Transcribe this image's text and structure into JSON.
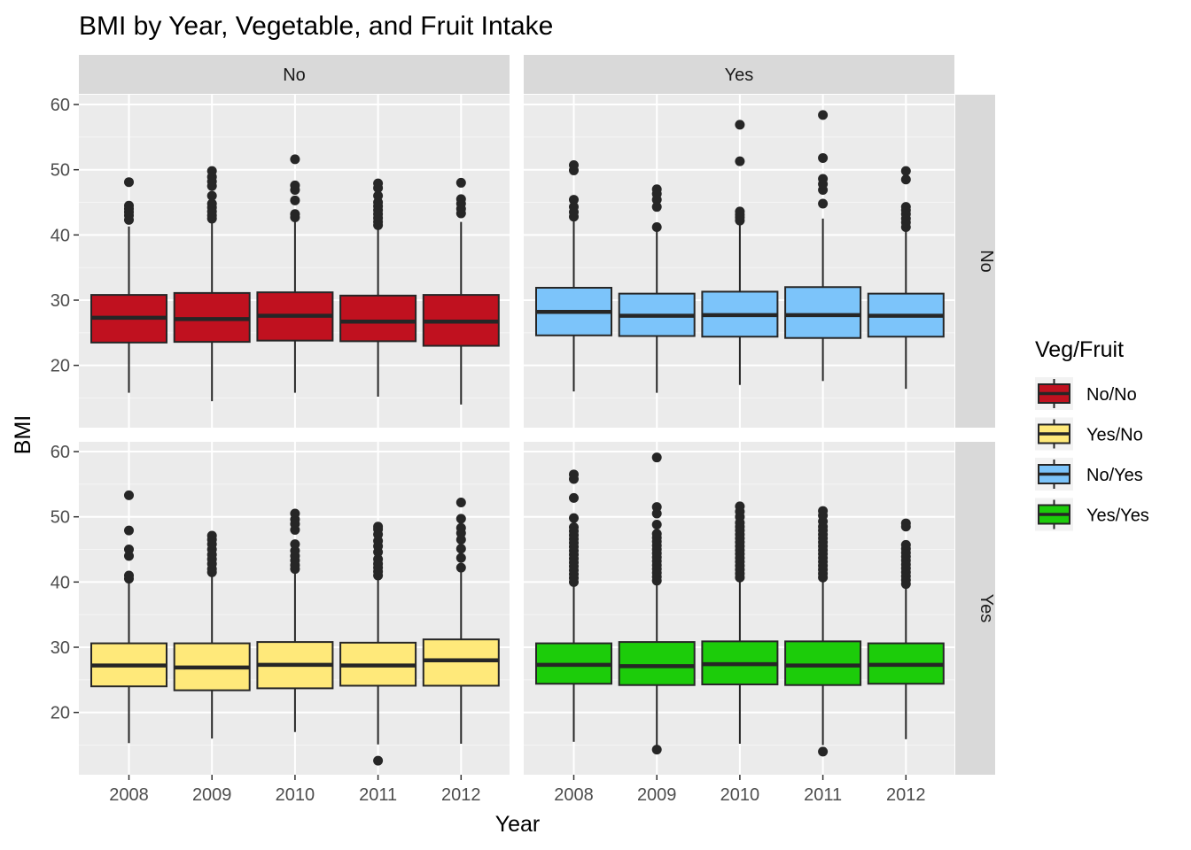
{
  "chart_data": {
    "type": "boxplot",
    "title": "BMI by Year, Vegetable, and Fruit Intake",
    "xlabel": "Year",
    "ylabel": "BMI",
    "categories": [
      "2008",
      "2009",
      "2010",
      "2011",
      "2012"
    ],
    "y_ticks": [
      20,
      30,
      40,
      50,
      60
    ],
    "ylim": [
      10,
      61.5
    ],
    "grid": true,
    "facet_cols": [
      "No",
      "Yes"
    ],
    "facet_rows": [
      "No",
      "Yes"
    ],
    "legend": {
      "title": "Veg/Fruit",
      "position": "right",
      "items": [
        {
          "label": "No/No",
          "color": "#C0111F"
        },
        {
          "label": "Yes/No",
          "color": "#FFE97A"
        },
        {
          "label": "No/Yes",
          "color": "#7CC4FA"
        },
        {
          "label": "Yes/Yes",
          "color": "#1CCC0A"
        }
      ]
    },
    "panels": [
      {
        "col": "No",
        "row": "No",
        "series": "No/No",
        "color": "#C0111F",
        "boxes": [
          {
            "year": "2008",
            "lower_whisker": 15.8,
            "q1": 23.5,
            "median": 27.3,
            "q3": 30.8,
            "upper_whisker": 41.3,
            "outliers": [
              42.3,
              43.0,
              43.5,
              44.0,
              44.5,
              48.1
            ]
          },
          {
            "year": "2009",
            "lower_whisker": 14.5,
            "q1": 23.6,
            "median": 27.1,
            "q3": 31.1,
            "upper_whisker": 42.0,
            "outliers": [
              42.5,
              43.0,
              43.6,
              44.2,
              44.8,
              46.0,
              47.5,
              48.2,
              48.9,
              49.8
            ]
          },
          {
            "year": "2010",
            "lower_whisker": 15.8,
            "q1": 23.8,
            "median": 27.6,
            "q3": 31.2,
            "upper_whisker": 42.0,
            "outliers": [
              42.7,
              43.2,
              45.3,
              46.9,
              47.6,
              51.6
            ]
          },
          {
            "year": "2011",
            "lower_whisker": 15.2,
            "q1": 23.7,
            "median": 26.7,
            "q3": 30.7,
            "upper_whisker": 41.0,
            "outliers": [
              41.5,
              42.0,
              42.6,
              43.2,
              43.8,
              44.4,
              45.0,
              46.0,
              47.2,
              47.9
            ]
          },
          {
            "year": "2012",
            "lower_whisker": 14.0,
            "q1": 23.0,
            "median": 26.7,
            "q3": 30.8,
            "upper_whisker": 42.0,
            "outliers": [
              43.3,
              44.0,
              44.8,
              45.5,
              48.0
            ]
          }
        ]
      },
      {
        "col": "Yes",
        "row": "No",
        "series": "No/Yes",
        "color": "#7CC4FA",
        "boxes": [
          {
            "year": "2008",
            "lower_whisker": 16.0,
            "q1": 24.6,
            "median": 28.2,
            "q3": 31.9,
            "upper_whisker": 42.3,
            "outliers": [
              42.8,
              43.5,
              44.3,
              45.4,
              49.9,
              50.7
            ]
          },
          {
            "year": "2009",
            "lower_whisker": 15.8,
            "q1": 24.5,
            "median": 27.6,
            "q3": 31.0,
            "upper_whisker": 41.0,
            "outliers": [
              41.2,
              44.3,
              45.4,
              46.3,
              47.0
            ]
          },
          {
            "year": "2010",
            "lower_whisker": 17.0,
            "q1": 24.4,
            "median": 27.7,
            "q3": 31.3,
            "upper_whisker": 41.9,
            "outliers": [
              42.2,
              42.7,
              43.1,
              43.6,
              51.3,
              56.9
            ]
          },
          {
            "year": "2011",
            "lower_whisker": 17.6,
            "q1": 24.2,
            "median": 27.7,
            "q3": 32.0,
            "upper_whisker": 42.5,
            "outliers": [
              44.8,
              46.9,
              47.8,
              48.6,
              51.8,
              58.4
            ]
          },
          {
            "year": "2012",
            "lower_whisker": 16.4,
            "q1": 24.4,
            "median": 27.6,
            "q3": 31.0,
            "upper_whisker": 40.8,
            "outliers": [
              41.2,
              41.9,
              42.5,
              43.2,
              43.8,
              44.3,
              48.5,
              49.8
            ]
          }
        ]
      },
      {
        "col": "No",
        "row": "Yes",
        "series": "Yes/No",
        "color": "#FFE97A",
        "boxes": [
          {
            "year": "2008",
            "lower_whisker": 15.3,
            "q1": 24.0,
            "median": 27.2,
            "q3": 30.6,
            "upper_whisker": 40.0,
            "outliers": [
              40.5,
              41.0,
              44.0,
              45.0,
              47.9,
              53.3
            ]
          },
          {
            "year": "2009",
            "lower_whisker": 16.0,
            "q1": 23.4,
            "median": 26.9,
            "q3": 30.6,
            "upper_whisker": 41.0,
            "outliers": [
              41.5,
              42.0,
              42.8,
              43.5,
              44.2,
              45.0,
              45.8,
              46.5,
              47.1
            ]
          },
          {
            "year": "2010",
            "lower_whisker": 17.0,
            "q1": 23.7,
            "median": 27.3,
            "q3": 30.8,
            "upper_whisker": 41.5,
            "outliers": [
              42.0,
              42.6,
              43.3,
              44.0,
              44.8,
              45.8,
              48.0,
              48.9,
              49.6,
              50.5
            ]
          },
          {
            "year": "2011",
            "lower_whisker": 15.1,
            "q1": 24.1,
            "median": 27.2,
            "q3": 30.7,
            "upper_whisker": 40.5,
            "outliers": [
              12.6,
              41.0,
              41.6,
              42.2,
              42.8,
              43.5,
              44.6,
              45.5,
              46.3,
              47.3,
              48.1,
              48.5
            ]
          },
          {
            "year": "2012",
            "lower_whisker": 15.2,
            "q1": 24.1,
            "median": 28.0,
            "q3": 31.2,
            "upper_whisker": 41.5,
            "outliers": [
              42.2,
              43.7,
              45.1,
              46.5,
              47.5,
              48.3,
              49.7,
              52.2
            ]
          }
        ]
      },
      {
        "col": "Yes",
        "row": "Yes",
        "series": "Yes/Yes",
        "color": "#1CCC0A",
        "boxes": [
          {
            "year": "2008",
            "lower_whisker": 15.5,
            "q1": 24.4,
            "median": 27.3,
            "q3": 30.6,
            "upper_whisker": 39.8,
            "outliers": [
              40.0,
              40.6,
              41.2,
              41.8,
              42.4,
              43.0,
              43.6,
              44.2,
              44.8,
              45.4,
              46.0,
              46.6,
              47.2,
              47.8,
              48.4,
              49.8,
              52.9,
              55.8,
              56.5
            ]
          },
          {
            "year": "2009",
            "lower_whisker": 14.8,
            "q1": 24.2,
            "median": 27.1,
            "q3": 30.8,
            "upper_whisker": 40.0,
            "outliers": [
              14.3,
              40.2,
              40.8,
              41.4,
              42.0,
              42.6,
              43.2,
              43.8,
              44.4,
              45.0,
              45.6,
              46.2,
              46.8,
              47.4,
              48.8,
              50.5,
              51.5,
              59.1
            ]
          },
          {
            "year": "2010",
            "lower_whisker": 15.2,
            "q1": 24.3,
            "median": 27.4,
            "q3": 30.9,
            "upper_whisker": 40.5,
            "outliers": [
              40.7,
              41.3,
              41.9,
              42.5,
              43.1,
              43.7,
              44.3,
              44.9,
              45.5,
              46.1,
              46.7,
              47.3,
              47.9,
              48.5,
              49.1,
              50.0,
              50.8,
              51.6
            ]
          },
          {
            "year": "2011",
            "lower_whisker": 15.0,
            "q1": 24.2,
            "median": 27.2,
            "q3": 30.9,
            "upper_whisker": 40.5,
            "outliers": [
              14.0,
              40.7,
              41.3,
              41.9,
              42.5,
              43.1,
              43.7,
              44.3,
              44.9,
              45.5,
              46.1,
              46.7,
              47.3,
              47.9,
              48.5,
              49.3,
              50.2,
              50.9
            ]
          },
          {
            "year": "2012",
            "lower_whisker": 15.9,
            "q1": 24.4,
            "median": 27.3,
            "q3": 30.6,
            "upper_whisker": 39.5,
            "outliers": [
              39.7,
              40.3,
              40.9,
              41.5,
              42.1,
              42.7,
              43.3,
              43.9,
              44.5,
              45.1,
              45.7,
              48.5,
              49.0
            ]
          }
        ]
      }
    ]
  }
}
